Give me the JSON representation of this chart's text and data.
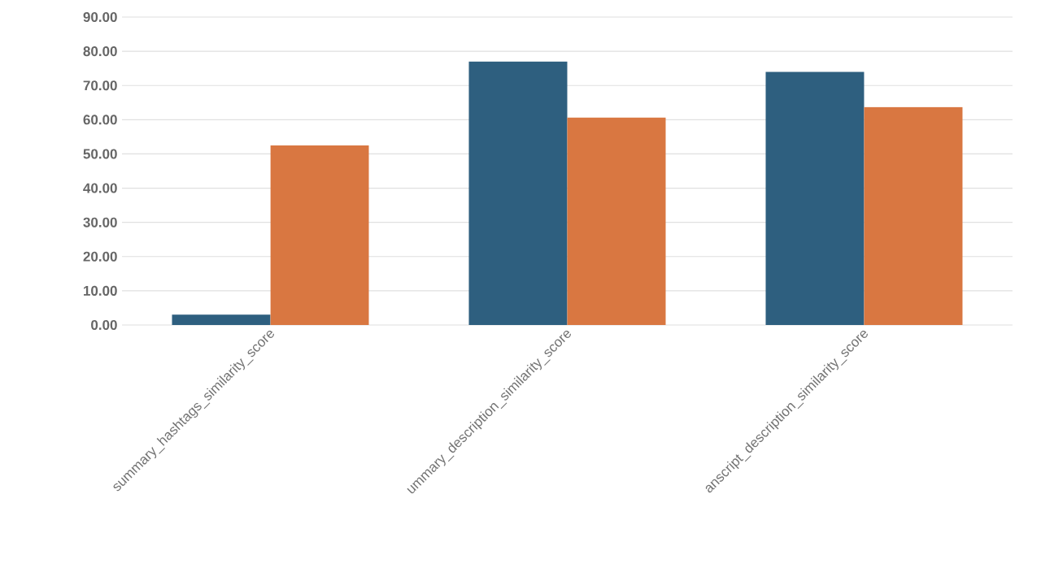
{
  "chart_data": {
    "type": "bar",
    "categories": [
      "summary_hashtags_similarity_score",
      "ummary_description_similarity_score",
      "anscript_description_similarity_score"
    ],
    "series": [
      {
        "color": "#2e5f7f",
        "values": [
          3,
          77,
          74
        ]
      },
      {
        "color": "#d97741",
        "values": [
          52.5,
          60.6,
          63.7
        ]
      }
    ],
    "ylim": [
      0,
      90
    ],
    "yticks": [
      {
        "value": 0,
        "label": "0.00"
      },
      {
        "value": 10,
        "label": "10.00"
      },
      {
        "value": 20,
        "label": "20.00"
      },
      {
        "value": 30,
        "label": "30.00"
      },
      {
        "value": 40,
        "label": "40.00"
      },
      {
        "value": 50,
        "label": "50.00"
      },
      {
        "value": 60,
        "label": "60.00"
      },
      {
        "value": 70,
        "label": "70.00"
      },
      {
        "value": 80,
        "label": "80.00"
      },
      {
        "value": 90,
        "label": "90.00"
      }
    ],
    "grid": "y"
  }
}
